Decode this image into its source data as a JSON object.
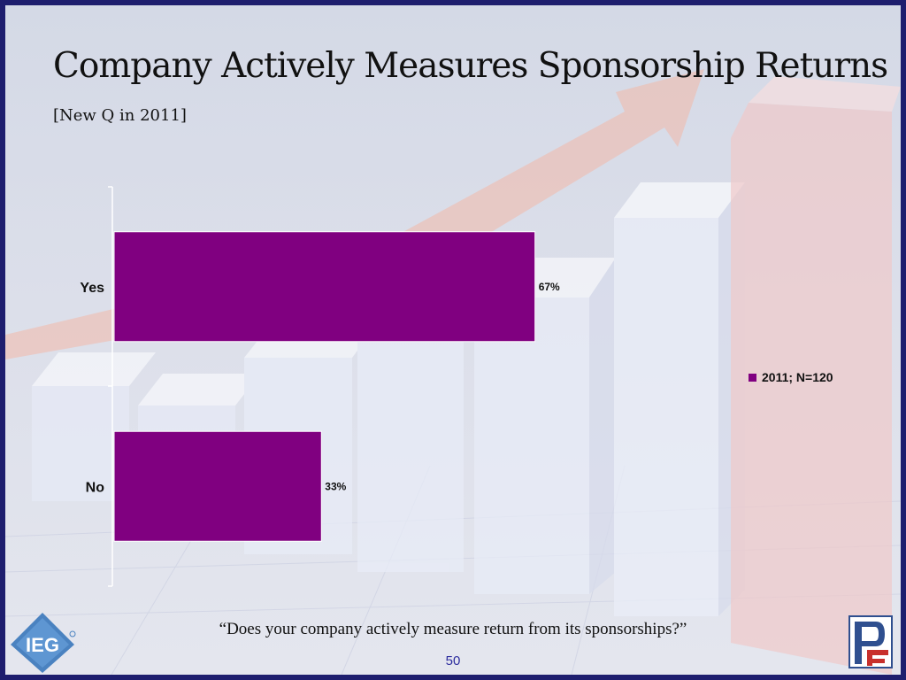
{
  "slide": {
    "title": "Company Actively Measures Sponsorship Returns",
    "subtitle": "[New Q in 2011]",
    "question": "“Does your company actively measure return from its sponsorships?”",
    "page_number": "50",
    "logos": {
      "left": "IEG",
      "right": "PF"
    }
  },
  "colors": {
    "bar": "#800080",
    "frame": "#1e1e6e",
    "page_number": "#2c2c9e"
  },
  "chart_data": {
    "type": "bar",
    "orientation": "horizontal",
    "categories": [
      "Yes",
      "No"
    ],
    "series": [
      {
        "name": "2011; N=120",
        "values": [
          67,
          33
        ],
        "labels": [
          "67%",
          "33%"
        ]
      }
    ],
    "xlim": [
      0,
      100
    ],
    "legend": "right",
    "grid": false
  }
}
